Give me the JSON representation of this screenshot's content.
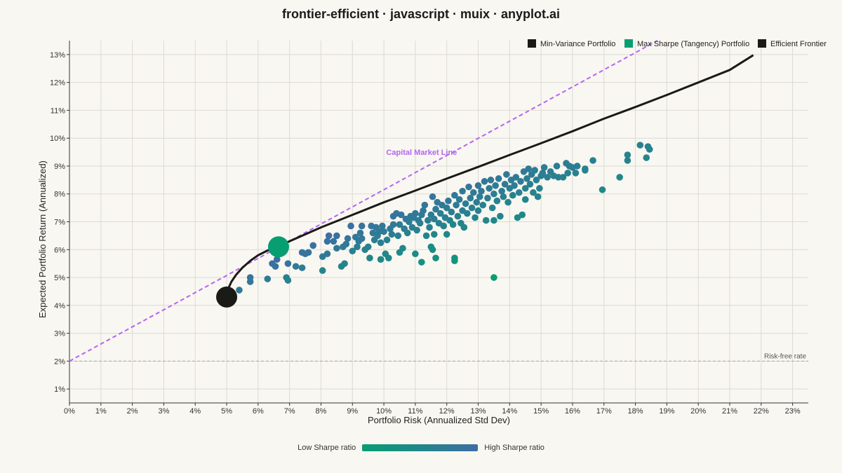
{
  "title": "frontier-efficient · javascript · muix · anyplot.ai",
  "colors": {
    "background": "#f9f7f1",
    "frontier": "#1a1a17",
    "min_variance": "#1a1a17",
    "max_sharpe": "#079e72",
    "cml": "#b366f0",
    "low_sharpe": "#079e72",
    "high_sharpe": "#3d6ea3",
    "grid": "#dcdad3",
    "rf_line": "#a8a8a8"
  },
  "colorbar": {
    "low_label": "Low Sharpe ratio",
    "high_label": "High Sharpe ratio"
  },
  "chart_data": {
    "type": "scatter",
    "xlabel": "Portfolio Risk (Annualized Std Dev)",
    "ylabel": "Expected Portfolio Return (Annualized)",
    "xlim": [
      0,
      23.5
    ],
    "ylim": [
      0.5,
      13.5
    ],
    "x_ticks": [
      0,
      1,
      2,
      3,
      4,
      5,
      6,
      7,
      8,
      9,
      10,
      11,
      12,
      13,
      14,
      15,
      16,
      17,
      18,
      19,
      20,
      21,
      22,
      23
    ],
    "y_ticks": [
      1,
      2,
      3,
      4,
      5,
      6,
      7,
      8,
      9,
      10,
      11,
      12,
      13
    ],
    "tick_suffix": "%",
    "grid": true,
    "legend": {
      "position": "top-right",
      "entries": [
        "Min-Variance Portfolio",
        "Max Sharpe (Tangency) Portfolio",
        "Efficient Frontier"
      ]
    },
    "risk_free_rate": {
      "value": 2,
      "label": "Risk-free rate"
    },
    "capital_market_line": {
      "label": "Capital Market Line",
      "from": [
        0,
        2
      ],
      "to": [
        18.7,
        13.5
      ]
    },
    "min_variance_portfolio": {
      "x": 5.0,
      "y": 4.3
    },
    "max_sharpe_portfolio": {
      "x": 6.65,
      "y": 6.1
    },
    "efficient_frontier": [
      [
        5.0,
        4.3
      ],
      [
        5.05,
        4.6
      ],
      [
        5.15,
        4.85
      ],
      [
        5.3,
        5.1
      ],
      [
        5.5,
        5.35
      ],
      [
        5.75,
        5.6
      ],
      [
        6.0,
        5.8
      ],
      [
        6.3,
        5.97
      ],
      [
        6.65,
        6.12
      ],
      [
        7.0,
        6.3
      ],
      [
        7.5,
        6.55
      ],
      [
        8.0,
        6.8
      ],
      [
        9.0,
        7.25
      ],
      [
        10.0,
        7.7
      ],
      [
        11.0,
        8.12
      ],
      [
        12.0,
        8.55
      ],
      [
        13.0,
        8.97
      ],
      [
        14.0,
        9.4
      ],
      [
        15.0,
        9.82
      ],
      [
        16.0,
        10.25
      ],
      [
        17.0,
        10.7
      ],
      [
        18.0,
        11.12
      ],
      [
        19.0,
        11.55
      ],
      [
        20.0,
        12.0
      ],
      [
        21.0,
        12.45
      ],
      [
        21.75,
        12.98
      ]
    ],
    "portfolios": [
      [
        5.4,
        4.55
      ],
      [
        5.75,
        5.0
      ],
      [
        5.75,
        4.85
      ],
      [
        6.3,
        4.95
      ],
      [
        6.45,
        5.5
      ],
      [
        6.55,
        5.4
      ],
      [
        6.6,
        5.65
      ],
      [
        6.9,
        5.0
      ],
      [
        6.95,
        4.9
      ],
      [
        6.95,
        5.5
      ],
      [
        7.2,
        5.4
      ],
      [
        7.4,
        5.35
      ],
      [
        7.4,
        5.9
      ],
      [
        7.5,
        5.85
      ],
      [
        7.6,
        5.9
      ],
      [
        7.75,
        6.15
      ],
      [
        8.05,
        5.75
      ],
      [
        8.05,
        5.25
      ],
      [
        8.2,
        5.85
      ],
      [
        8.2,
        6.3
      ],
      [
        8.25,
        6.5
      ],
      [
        8.4,
        6.3
      ],
      [
        8.5,
        6.5
      ],
      [
        8.5,
        6.05
      ],
      [
        8.65,
        5.4
      ],
      [
        8.7,
        6.1
      ],
      [
        8.75,
        5.5
      ],
      [
        8.8,
        6.2
      ],
      [
        8.85,
        6.4
      ],
      [
        8.95,
        6.85
      ],
      [
        9.0,
        5.95
      ],
      [
        9.1,
        6.45
      ],
      [
        9.15,
        6.1
      ],
      [
        9.2,
        6.3
      ],
      [
        9.25,
        6.6
      ],
      [
        9.3,
        6.4
      ],
      [
        9.3,
        6.85
      ],
      [
        9.4,
        6.0
      ],
      [
        9.5,
        6.1
      ],
      [
        9.55,
        5.7
      ],
      [
        9.6,
        6.85
      ],
      [
        9.65,
        6.6
      ],
      [
        9.7,
        6.35
      ],
      [
        9.75,
        6.8
      ],
      [
        9.8,
        6.5
      ],
      [
        9.85,
        6.65
      ],
      [
        9.9,
        6.25
      ],
      [
        9.9,
        5.65
      ],
      [
        9.95,
        6.85
      ],
      [
        10.0,
        6.65
      ],
      [
        10.05,
        5.85
      ],
      [
        10.1,
        6.35
      ],
      [
        10.15,
        5.7
      ],
      [
        10.2,
        6.75
      ],
      [
        10.25,
        6.55
      ],
      [
        10.3,
        6.9
      ],
      [
        10.3,
        7.2
      ],
      [
        10.4,
        7.3
      ],
      [
        10.45,
        6.5
      ],
      [
        10.5,
        5.9
      ],
      [
        10.5,
        6.9
      ],
      [
        10.55,
        7.25
      ],
      [
        10.6,
        6.05
      ],
      [
        10.65,
        6.75
      ],
      [
        10.7,
        7.1
      ],
      [
        10.75,
        6.6
      ],
      [
        10.8,
        7.0
      ],
      [
        10.85,
        7.2
      ],
      [
        10.9,
        6.8
      ],
      [
        10.95,
        7.15
      ],
      [
        11.0,
        7.3
      ],
      [
        11.0,
        5.85
      ],
      [
        11.05,
        6.7
      ],
      [
        11.1,
        7.05
      ],
      [
        11.15,
        6.95
      ],
      [
        11.2,
        7.25
      ],
      [
        11.2,
        5.55
      ],
      [
        11.25,
        7.4
      ],
      [
        11.3,
        7.6
      ],
      [
        11.35,
        6.5
      ],
      [
        11.4,
        7.05
      ],
      [
        11.45,
        6.8
      ],
      [
        11.5,
        7.25
      ],
      [
        11.5,
        6.1
      ],
      [
        11.55,
        7.9
      ],
      [
        11.55,
        6.0
      ],
      [
        11.6,
        7.1
      ],
      [
        11.6,
        6.55
      ],
      [
        11.65,
        7.45
      ],
      [
        11.65,
        5.7
      ],
      [
        11.7,
        7.7
      ],
      [
        11.75,
        6.95
      ],
      [
        11.8,
        7.3
      ],
      [
        11.85,
        7.6
      ],
      [
        11.9,
        6.85
      ],
      [
        11.95,
        7.15
      ],
      [
        12.0,
        7.5
      ],
      [
        12.0,
        6.55
      ],
      [
        12.05,
        7.75
      ],
      [
        12.1,
        7.05
      ],
      [
        12.15,
        7.35
      ],
      [
        12.2,
        6.9
      ],
      [
        12.25,
        7.95
      ],
      [
        12.25,
        5.7
      ],
      [
        12.25,
        5.6
      ],
      [
        12.3,
        7.6
      ],
      [
        12.35,
        7.2
      ],
      [
        12.4,
        7.8
      ],
      [
        12.45,
        6.95
      ],
      [
        12.5,
        8.1
      ],
      [
        12.5,
        7.4
      ],
      [
        12.55,
        6.8
      ],
      [
        12.6,
        7.65
      ],
      [
        12.65,
        7.3
      ],
      [
        12.7,
        8.25
      ],
      [
        12.75,
        7.85
      ],
      [
        12.8,
        7.5
      ],
      [
        12.85,
        8.05
      ],
      [
        12.9,
        7.15
      ],
      [
        12.95,
        7.7
      ],
      [
        13.0,
        8.3
      ],
      [
        13.0,
        7.4
      ],
      [
        13.05,
        7.9
      ],
      [
        13.1,
        8.1
      ],
      [
        13.15,
        7.6
      ],
      [
        13.2,
        8.45
      ],
      [
        13.25,
        7.05
      ],
      [
        13.3,
        7.85
      ],
      [
        13.35,
        8.2
      ],
      [
        13.4,
        8.5
      ],
      [
        13.45,
        7.5
      ],
      [
        13.5,
        8.0
      ],
      [
        13.5,
        7.05
      ],
      [
        13.5,
        5.0
      ],
      [
        13.55,
        8.3
      ],
      [
        13.6,
        7.75
      ],
      [
        13.65,
        8.55
      ],
      [
        13.7,
        7.2
      ],
      [
        13.75,
        8.1
      ],
      [
        13.8,
        7.9
      ],
      [
        13.85,
        8.35
      ],
      [
        13.9,
        8.7
      ],
      [
        13.95,
        7.7
      ],
      [
        14.0,
        8.2
      ],
      [
        14.05,
        8.5
      ],
      [
        14.1,
        7.95
      ],
      [
        14.15,
        8.3
      ],
      [
        14.2,
        8.6
      ],
      [
        14.25,
        7.15
      ],
      [
        14.3,
        8.05
      ],
      [
        14.35,
        8.45
      ],
      [
        14.4,
        7.25
      ],
      [
        14.45,
        8.8
      ],
      [
        14.5,
        8.2
      ],
      [
        14.5,
        7.8
      ],
      [
        14.55,
        8.55
      ],
      [
        14.6,
        8.9
      ],
      [
        14.65,
        8.35
      ],
      [
        14.7,
        8.7
      ],
      [
        14.75,
        8.05
      ],
      [
        14.8,
        8.85
      ],
      [
        14.85,
        8.5
      ],
      [
        14.9,
        7.9
      ],
      [
        14.95,
        8.2
      ],
      [
        15.0,
        8.65
      ],
      [
        15.05,
        8.75
      ],
      [
        15.1,
        8.95
      ],
      [
        15.2,
        8.6
      ],
      [
        15.3,
        8.8
      ],
      [
        15.4,
        8.65
      ],
      [
        15.5,
        9.0
      ],
      [
        15.55,
        8.6
      ],
      [
        15.7,
        8.6
      ],
      [
        15.8,
        9.1
      ],
      [
        15.85,
        8.75
      ],
      [
        15.9,
        9.0
      ],
      [
        16.0,
        8.95
      ],
      [
        16.1,
        8.75
      ],
      [
        16.15,
        9.0
      ],
      [
        16.4,
        8.9
      ],
      [
        16.4,
        8.85
      ],
      [
        16.65,
        9.2
      ],
      [
        16.95,
        8.15
      ],
      [
        17.5,
        8.6
      ],
      [
        17.75,
        9.2
      ],
      [
        17.75,
        9.4
      ],
      [
        18.15,
        9.75
      ],
      [
        18.35,
        9.3
      ],
      [
        18.4,
        9.7
      ],
      [
        18.45,
        9.6
      ]
    ]
  }
}
